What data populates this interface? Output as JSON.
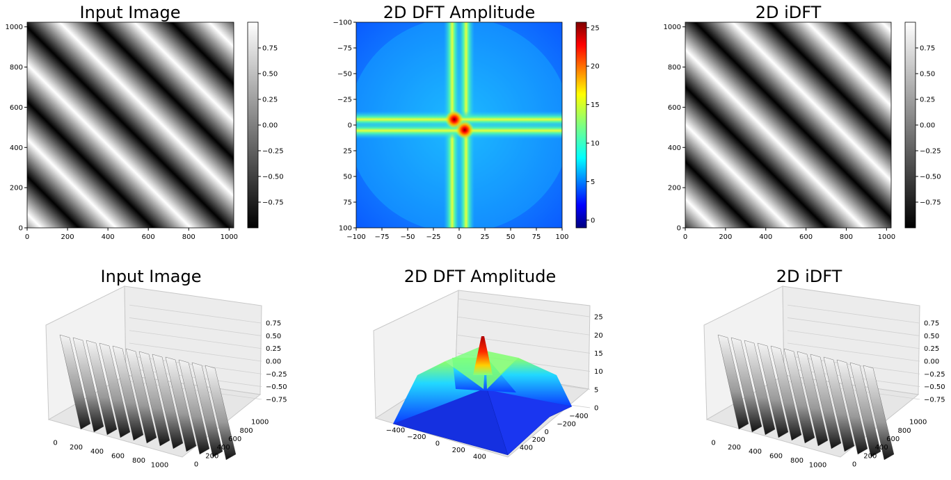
{
  "chart_data": [
    {
      "type": "heatmap",
      "title": "Input Image",
      "colormap": "gray",
      "x_ticks": [
        "0",
        "200",
        "400",
        "600",
        "800",
        "1000"
      ],
      "y_ticks": [
        "0",
        "200",
        "400",
        "600",
        "800",
        "1000"
      ],
      "xlim": [
        0,
        1023
      ],
      "ylim": [
        1023,
        0
      ],
      "pattern": "diagonal sinusoidal stripes",
      "colorbar": {
        "ticks": [
          "0.75",
          "0.50",
          "0.25",
          "0.00",
          "−0.25",
          "−0.50",
          "−0.75"
        ],
        "range": [
          -1,
          1
        ]
      }
    },
    {
      "type": "heatmap",
      "title": "2D DFT Amplitude",
      "colormap": "jet",
      "x_ticks": [
        "−100",
        "−75",
        "−50",
        "−25",
        "0",
        "25",
        "50",
        "75",
        "100"
      ],
      "y_ticks": [
        "100",
        "75",
        "50",
        "25",
        "0",
        "−25",
        "−50",
        "−75",
        "−100"
      ],
      "xlim": [
        -100,
        100
      ],
      "ylim": [
        -100,
        100
      ],
      "peaks": [
        {
          "x": -5,
          "y": 5,
          "value": 25
        },
        {
          "x": 5,
          "y": -5,
          "value": 25
        }
      ],
      "colorbar": {
        "ticks": [
          "25",
          "20",
          "15",
          "10",
          "5",
          "0"
        ],
        "range": [
          -1,
          25.7
        ]
      }
    },
    {
      "type": "heatmap",
      "title": "2D iDFT",
      "colormap": "gray",
      "x_ticks": [
        "0",
        "200",
        "400",
        "600",
        "800",
        "1000"
      ],
      "y_ticks": [
        "0",
        "200",
        "400",
        "600",
        "800",
        "1000"
      ],
      "xlim": [
        0,
        1023
      ],
      "ylim": [
        1023,
        0
      ],
      "pattern": "diagonal sinusoidal stripes",
      "colorbar": {
        "ticks": [
          "0.75",
          "0.50",
          "0.25",
          "0.00",
          "−0.25",
          "−0.50",
          "−0.75"
        ],
        "range": [
          -1,
          1
        ]
      }
    },
    {
      "type": "surface",
      "title": "Input Image",
      "colormap": "gray",
      "x_ticks": [
        "0",
        "200",
        "400",
        "600",
        "800",
        "1000"
      ],
      "y_ticks": [
        "0",
        "200",
        "400",
        "600",
        "800",
        "1000"
      ],
      "z_ticks": [
        "0.75",
        "0.50",
        "0.25",
        "0.00",
        "−0.25",
        "−0.50",
        "−0.75"
      ],
      "zlim": [
        -1,
        1
      ]
    },
    {
      "type": "surface",
      "title": "2D DFT Amplitude",
      "colormap": "jet",
      "x_ticks": [
        "−400",
        "−200",
        "0",
        "200",
        "400"
      ],
      "y_ticks": [
        "400",
        "200",
        "0",
        "−200",
        "−400"
      ],
      "z_ticks": [
        "25",
        "20",
        "15",
        "10",
        "5",
        "0"
      ],
      "zlim": [
        0,
        25
      ]
    },
    {
      "type": "surface",
      "title": "2D iDFT",
      "colormap": "gray",
      "x_ticks": [
        "0",
        "200",
        "400",
        "600",
        "800",
        "1000"
      ],
      "y_ticks": [
        "0",
        "200",
        "400",
        "600",
        "800",
        "1000"
      ],
      "z_ticks": [
        "0.75",
        "0.50",
        "0.25",
        "0.00",
        "−0.25",
        "−0.50",
        "−0.75"
      ],
      "zlim": [
        -1,
        1
      ]
    }
  ]
}
